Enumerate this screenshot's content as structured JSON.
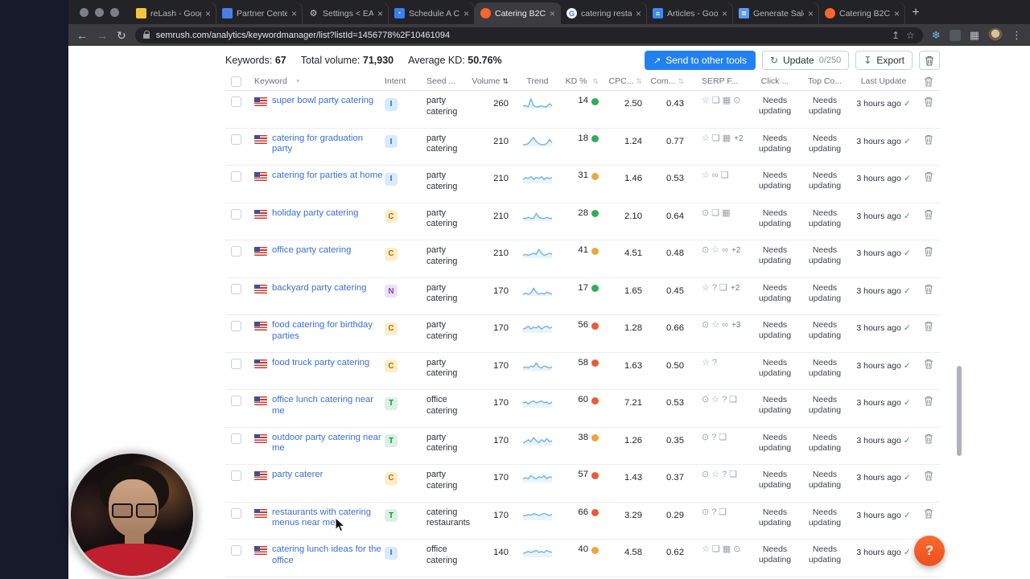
{
  "browser": {
    "tabs": [
      {
        "title": "reLash - Googl",
        "icon": "folder"
      },
      {
        "title": "Partner Center",
        "icon": "partner"
      },
      {
        "title": "Settings < EATQ",
        "icon": "gear"
      },
      {
        "title": "Schedule A Cal",
        "icon": "calendar"
      },
      {
        "title": "Catering B2C: K",
        "icon": "semrush"
      },
      {
        "title": "catering restaur",
        "icon": "google"
      },
      {
        "title": "Articles - Googl",
        "icon": "docs"
      },
      {
        "title": "Generate Sales",
        "icon": "doc"
      },
      {
        "title": "Catering B2C: K",
        "icon": "semrush"
      }
    ],
    "active_tab_index": 4,
    "new_tab": "+",
    "url": "semrush.com/analytics/keywordmanager/list?listId=1456778%2F10461094"
  },
  "stats": {
    "keywords_label": "Keywords:",
    "keywords_value": "67",
    "volume_label": "Total volume:",
    "volume_value": "71,930",
    "kd_label": "Average KD:",
    "kd_value": "50.76%"
  },
  "actions": {
    "send_label": "Send to other tools",
    "update_label": "Update",
    "update_count": "0/250",
    "export_label": "Export"
  },
  "table": {
    "columns": {
      "kw": "Keyword",
      "intent": "Intent",
      "seed": "Seed ...",
      "volume": "Volume",
      "trend": "Trend",
      "kd": "KD %",
      "cpc": "CPC...",
      "com": "Com...",
      "serp": "SERP F...",
      "clicks": "Click ...",
      "top": "Top Co...",
      "last": "Last Update"
    },
    "rows": [
      {
        "keyword": "super bowl party catering",
        "intent": "I",
        "seed": "party catering",
        "volume": "260",
        "trend": [
          2,
          2,
          1,
          9,
          2,
          1,
          1,
          2,
          1,
          1,
          4,
          2
        ],
        "kd": "14",
        "kd_level": "green",
        "cpc": "2.50",
        "com": "0.43",
        "serp": [
          "star",
          "chat",
          "image",
          "pin"
        ],
        "serp_extra": "",
        "clicks": "Needs updating",
        "top_competitors": "Needs updating",
        "last_update": "3 hours ago"
      },
      {
        "keyword": "catering for graduation party",
        "intent": "I",
        "seed": "party catering",
        "volume": "210",
        "trend": [
          1,
          1,
          2,
          5,
          8,
          4,
          2,
          1,
          1,
          2,
          6,
          3
        ],
        "kd": "18",
        "kd_level": "green",
        "cpc": "1.24",
        "com": "0.77",
        "serp": [
          "star",
          "chat",
          "image"
        ],
        "serp_extra": "+2",
        "clicks": "Needs updating",
        "top_competitors": "Needs updating",
        "last_update": "3 hours ago"
      },
      {
        "keyword": "catering for parties at home",
        "intent": "I",
        "seed": "party catering",
        "volume": "210",
        "trend": [
          3,
          5,
          4,
          6,
          3,
          5,
          4,
          6,
          3,
          5,
          4,
          5
        ],
        "kd": "31",
        "kd_level": "yellow",
        "cpc": "1.46",
        "com": "0.53",
        "serp": [
          "star",
          "link",
          "chat"
        ],
        "serp_extra": "",
        "clicks": "Needs updating",
        "top_competitors": "Needs updating",
        "last_update": "3 hours ago"
      },
      {
        "keyword": "holiday party catering",
        "intent": "C",
        "seed": "party catering",
        "volume": "210",
        "trend": [
          2,
          2,
          3,
          2,
          2,
          7,
          3,
          2,
          2,
          3,
          2,
          2
        ],
        "kd": "28",
        "kd_level": "green",
        "cpc": "2.10",
        "com": "0.64",
        "serp": [
          "pin",
          "chat",
          "image"
        ],
        "serp_extra": "",
        "clicks": "Needs updating",
        "top_competitors": "Needs updating",
        "last_update": "3 hours ago"
      },
      {
        "keyword": "office party catering",
        "intent": "C",
        "seed": "party catering",
        "volume": "210",
        "trend": [
          2,
          3,
          2,
          3,
          4,
          3,
          8,
          4,
          2,
          3,
          4,
          3
        ],
        "kd": "41",
        "kd_level": "yellow",
        "cpc": "4.51",
        "com": "0.48",
        "serp": [
          "pin",
          "star",
          "link"
        ],
        "serp_extra": "+2",
        "clicks": "Needs updating",
        "top_competitors": "Needs updating",
        "last_update": "3 hours ago"
      },
      {
        "keyword": "backyard party catering",
        "intent": "N",
        "seed": "party catering",
        "volume": "170",
        "trend": [
          1,
          2,
          1,
          2,
          7,
          3,
          1,
          2,
          1,
          3,
          2,
          1
        ],
        "kd": "17",
        "kd_level": "green",
        "cpc": "1.65",
        "com": "0.45",
        "serp": [
          "star",
          "question",
          "chat"
        ],
        "serp_extra": "+2",
        "clicks": "Needs updating",
        "top_competitors": "Needs updating",
        "last_update": "3 hours ago"
      },
      {
        "keyword": "food catering for birthday parties",
        "intent": "C",
        "seed": "party catering",
        "volume": "170",
        "trend": [
          3,
          4,
          6,
          3,
          5,
          4,
          6,
          3,
          5,
          6,
          4,
          5
        ],
        "kd": "56",
        "kd_level": "red",
        "cpc": "1.28",
        "com": "0.66",
        "serp": [
          "pin",
          "star",
          "link"
        ],
        "serp_extra": "+3",
        "clicks": "Needs updating",
        "top_competitors": "Needs updating",
        "last_update": "3 hours ago"
      },
      {
        "keyword": "food truck party catering",
        "intent": "C",
        "seed": "party catering",
        "volume": "170",
        "trend": [
          2,
          3,
          2,
          4,
          3,
          7,
          3,
          2,
          4,
          3,
          2,
          3
        ],
        "kd": "58",
        "kd_level": "red",
        "cpc": "1.63",
        "com": "0.50",
        "serp": [
          "star",
          "question"
        ],
        "serp_extra": "",
        "clicks": "Needs updating",
        "top_competitors": "Needs updating",
        "last_update": "3 hours ago"
      },
      {
        "keyword": "office lunch catering near me",
        "intent": "T",
        "seed": "office catering",
        "volume": "170",
        "trend": [
          4,
          5,
          3,
          5,
          6,
          4,
          5,
          6,
          4,
          5,
          3,
          5
        ],
        "kd": "60",
        "kd_level": "red",
        "cpc": "7.21",
        "com": "0.53",
        "serp": [
          "pin",
          "star",
          "question",
          "chat"
        ],
        "serp_extra": "",
        "clicks": "Needs updating",
        "top_competitors": "Needs updating",
        "last_update": "3 hours ago"
      },
      {
        "keyword": "outdoor party catering near me",
        "intent": "T",
        "seed": "party catering",
        "volume": "170",
        "trend": [
          2,
          3,
          5,
          3,
          7,
          4,
          2,
          5,
          3,
          6,
          3,
          4
        ],
        "kd": "38",
        "kd_level": "yellow",
        "cpc": "1.26",
        "com": "0.35",
        "serp": [
          "pin",
          "question",
          "chat"
        ],
        "serp_extra": "",
        "clicks": "Needs updating",
        "top_competitors": "Needs updating",
        "last_update": "3 hours ago"
      },
      {
        "keyword": "party caterer",
        "intent": "C",
        "seed": "party catering",
        "volume": "170",
        "trend": [
          3,
          4,
          3,
          6,
          4,
          3,
          5,
          4,
          6,
          3,
          5,
          4
        ],
        "kd": "57",
        "kd_level": "red",
        "cpc": "1.43",
        "com": "0.37",
        "serp": [
          "pin",
          "star",
          "question",
          "chat"
        ],
        "serp_extra": "",
        "clicks": "Needs updating",
        "top_competitors": "Needs updating",
        "last_update": "3 hours ago"
      },
      {
        "keyword": "restaurants with catering menus near me",
        "intent": "T",
        "seed": "catering restaurants",
        "volume": "170",
        "trend": [
          4,
          4,
          5,
          4,
          6,
          5,
          4,
          5,
          6,
          5,
          4,
          5
        ],
        "kd": "66",
        "kd_level": "red",
        "cpc": "3.29",
        "com": "0.29",
        "serp": [
          "pin",
          "question",
          "chat"
        ],
        "serp_extra": "",
        "clicks": "Needs updating",
        "top_competitors": "Needs updating",
        "last_update": "3 hours ago"
      },
      {
        "keyword": "catering lunch ideas for the office",
        "intent": "I",
        "seed": "office catering",
        "volume": "140",
        "trend": [
          3,
          4,
          5,
          4,
          5,
          6,
          4,
          5,
          4,
          6,
          5,
          4
        ],
        "kd": "40",
        "kd_level": "yellow",
        "cpc": "4.58",
        "com": "0.62",
        "serp": [
          "star",
          "chat",
          "image",
          "pin"
        ],
        "serp_extra": "",
        "clicks": "Needs updating",
        "top_competitors": "Needs updating",
        "last_update": "3 hours ago"
      }
    ]
  },
  "glyphs": {
    "pin": "⊙",
    "star": "☆",
    "question": "?",
    "chat": "❏",
    "image": "▦",
    "link": "∞"
  },
  "help": {
    "label": "?"
  },
  "colors": {
    "accent_blue": "#2381ef",
    "semrush_orange": "#ff642d",
    "kd_green": "#2fad5a",
    "kd_yellow": "#e9a83a",
    "kd_red": "#e95b35",
    "link_blue": "#3a6fd8"
  }
}
